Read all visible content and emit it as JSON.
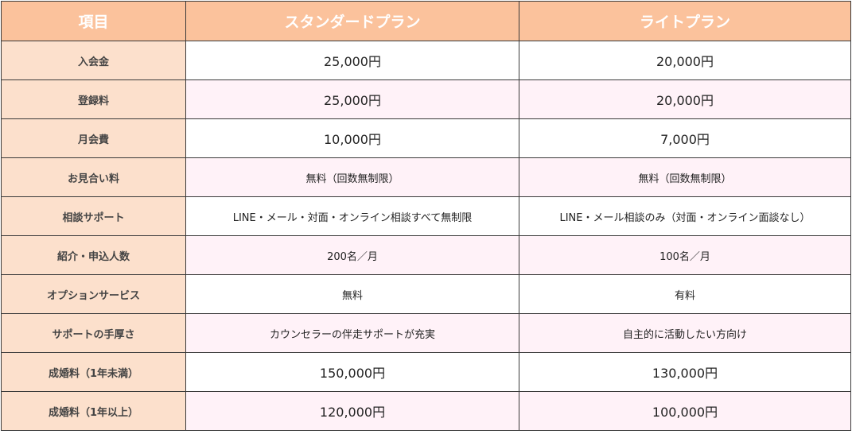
{
  "header": {
    "item": "項目",
    "standard": "スタンダードプラン",
    "light": "ライトプラン"
  },
  "colors": {
    "header_bg": "#FBC29C",
    "label_bg": "#FCE0CC",
    "alt_row_bg": "#FFF2F8",
    "border": "#3a3a3a"
  },
  "rows": [
    {
      "label": "入会金",
      "standard": "25,000円",
      "light": "20,000円",
      "big": true
    },
    {
      "label": "登録料",
      "standard": "25,000円",
      "light": "20,000円",
      "big": true
    },
    {
      "label": "月会費",
      "standard": "10,000円",
      "light": "7,000円",
      "big": true
    },
    {
      "label": "お見合い料",
      "standard": "無料（回数無制限）",
      "light": "無料（回数無制限）",
      "big": false
    },
    {
      "label": "相談サポート",
      "standard": "LINE・メール・対面・オンライン相談すべて無制限",
      "light": "LINE・メール相談のみ（対面・オンライン面談なし）",
      "big": false
    },
    {
      "label": "紹介・申込人数",
      "standard": "200名／月",
      "light": "100名／月",
      "big": false
    },
    {
      "label": "オプションサービス",
      "standard": "無料",
      "light": "有料",
      "big": false
    },
    {
      "label": "サポートの手厚さ",
      "standard": "カウンセラーの伴走サポートが充実",
      "light": "自主的に活動したい方向け",
      "big": false
    },
    {
      "label": "成婚料（1年未満）",
      "standard": "150,000円",
      "light": "130,000円",
      "big": true
    },
    {
      "label": "成婚料（1年以上）",
      "standard": "120,000円",
      "light": "100,000円",
      "big": true
    }
  ]
}
